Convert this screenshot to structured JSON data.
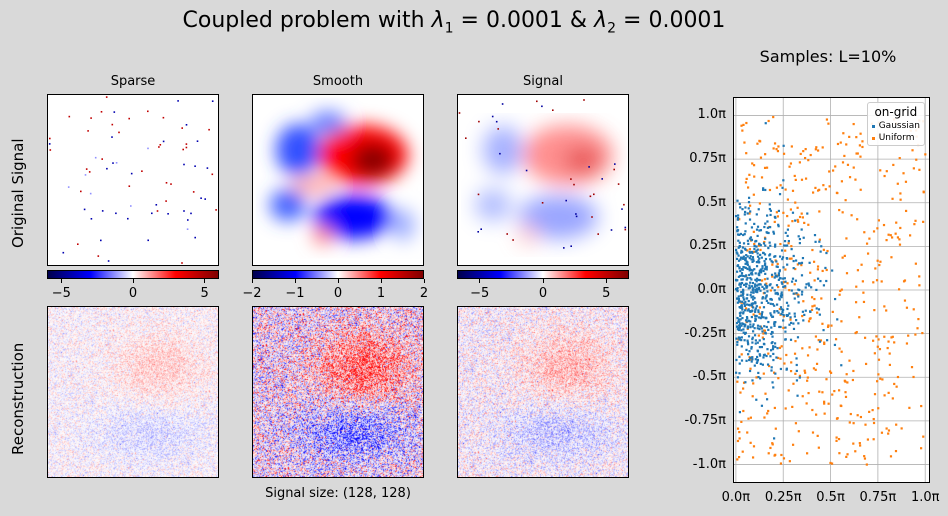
{
  "title": "Coupled problem with λ₁ = 0.0001 & λ₂ = 0.0001",
  "title_parts": {
    "prefix": "Coupled problem with ",
    "l1": "λ",
    "l1_sub": "1",
    "l1_val": " = 0.0001 & ",
    "l2": "λ",
    "l2_sub": "2",
    "l2_val": " = 0.0001"
  },
  "row_labels": [
    "Original Signal",
    "Reconstruction"
  ],
  "columns": [
    "Sparse",
    "Smooth",
    "Signal"
  ],
  "footer": "Signal size: (128, 128)",
  "colorbars": [
    {
      "ticks": [
        "−5",
        "0",
        "5"
      ],
      "range": [
        -6,
        6
      ],
      "values": [
        -5,
        0,
        5
      ]
    },
    {
      "ticks": [
        "−2",
        "−1",
        "0",
        "1",
        "2"
      ],
      "range": [
        -2,
        2
      ],
      "values": [
        -2,
        -1,
        0,
        1,
        2
      ]
    },
    {
      "ticks": [
        "−5",
        "0",
        "5"
      ],
      "range": [
        -6.8,
        6.8
      ],
      "values": [
        -5,
        0,
        5
      ]
    }
  ],
  "colors": {
    "background": "#d9d9d9",
    "gaussian": "#1f77b4",
    "uniform": "#ff7f0e",
    "grid": "#b0b0b0"
  },
  "chart_data": [
    {
      "type": "heatmap",
      "title": "Sparse",
      "row": "Original Signal",
      "colormap": "bwr",
      "vlim": [
        -6,
        6
      ],
      "description_values": {
        "nonzero_fraction": 0.005
      }
    },
    {
      "type": "heatmap",
      "title": "Smooth",
      "row": "Original Signal",
      "colormap": "bwr",
      "vlim": [
        -2,
        2
      ]
    },
    {
      "type": "heatmap",
      "title": "Signal",
      "row": "Original Signal",
      "colormap": "bwr",
      "vlim": [
        -6.8,
        6.8
      ]
    },
    {
      "type": "scatter",
      "title": "Samples: L=10%",
      "legend_title": "on-grid",
      "legend": [
        "Gaussian",
        "Uniform"
      ],
      "legend_position": "top-right",
      "xlim": [
        -0.01,
        1.02
      ],
      "ylim": [
        -1.1,
        1.1
      ],
      "xticks": [
        0,
        0.25,
        0.5,
        0.75,
        1.0
      ],
      "xtick_labels": [
        "0.0π",
        "0.25π",
        "0.5π",
        "0.75π",
        "1.0π"
      ],
      "yticks": [
        -1.0,
        -0.75,
        -0.5,
        -0.25,
        0,
        0.25,
        0.5,
        0.75,
        1.0
      ],
      "ytick_labels": [
        "-1.0π",
        "-0.75π",
        "-0.5π",
        "-0.25π",
        "0.0π",
        "0.25π",
        "0.5π",
        "0.75π",
        "1.0π"
      ],
      "grid": true,
      "series": [
        {
          "name": "Gaussian",
          "x_distribution": "half-normal",
          "x_center": 0.0,
          "x_spread": 0.18,
          "y_center": 0.0,
          "y_spread": 0.25,
          "count": 700
        },
        {
          "name": "Uniform",
          "x_range": [
            0,
            1
          ],
          "y_range": [
            -1,
            1
          ],
          "count": 500
        }
      ]
    }
  ]
}
